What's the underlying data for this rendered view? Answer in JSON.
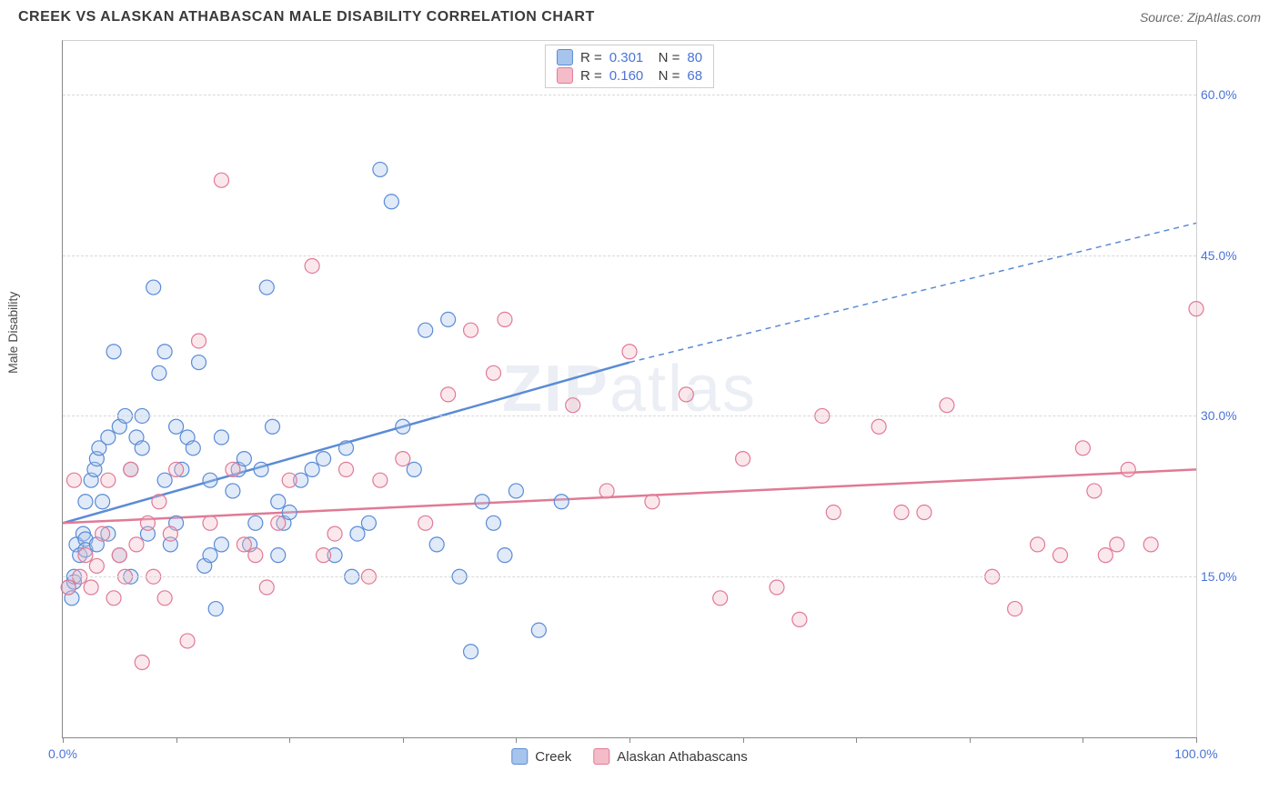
{
  "header": {
    "title": "CREEK VS ALASKAN ATHABASCAN MALE DISABILITY CORRELATION CHART",
    "source": "Source: ZipAtlas.com"
  },
  "chart": {
    "type": "scatter",
    "y_axis_label": "Male Disability",
    "watermark": "ZIPatlas",
    "xlim": [
      0,
      100
    ],
    "ylim": [
      0,
      65
    ],
    "y_gridlines": [
      15,
      30,
      45,
      60
    ],
    "y_tick_labels": [
      "15.0%",
      "30.0%",
      "45.0%",
      "60.0%"
    ],
    "x_ticks": [
      0,
      10,
      20,
      30,
      40,
      50,
      60,
      70,
      80,
      90,
      100
    ],
    "x_tick_labels": {
      "0": "0.0%",
      "100": "100.0%"
    },
    "background_color": "#ffffff",
    "grid_color": "#d8d8d8",
    "axis_color": "#888888",
    "marker_radius": 8,
    "marker_stroke_width": 1.2,
    "fill_opacity": 0.35,
    "series": [
      {
        "name": "Creek",
        "color_fill": "#a7c4ec",
        "color_stroke": "#5a8bd6",
        "r_value": "0.301",
        "n_value": "80",
        "trend": {
          "x1": 0,
          "y1": 20,
          "x2_solid": 50,
          "y2_solid": 35,
          "x2_dash": 100,
          "y2_dash": 48
        },
        "points": [
          [
            0.5,
            14
          ],
          [
            1,
            14.5
          ],
          [
            1.2,
            18
          ],
          [
            1.5,
            17
          ],
          [
            1.8,
            19
          ],
          [
            0.8,
            13
          ],
          [
            1,
            15
          ],
          [
            2,
            18.5
          ],
          [
            2,
            22
          ],
          [
            2,
            17.5
          ],
          [
            2.5,
            24
          ],
          [
            2.8,
            25
          ],
          [
            3,
            26
          ],
          [
            3,
            18
          ],
          [
            3.2,
            27
          ],
          [
            3.5,
            22
          ],
          [
            4,
            19
          ],
          [
            4,
            28
          ],
          [
            4.5,
            36
          ],
          [
            5,
            29
          ],
          [
            5,
            17
          ],
          [
            5.5,
            30
          ],
          [
            6,
            25
          ],
          [
            6,
            15
          ],
          [
            6.5,
            28
          ],
          [
            7,
            30
          ],
          [
            7,
            27
          ],
          [
            7.5,
            19
          ],
          [
            8,
            42
          ],
          [
            8.5,
            34
          ],
          [
            9,
            36
          ],
          [
            9,
            24
          ],
          [
            9.5,
            18
          ],
          [
            10,
            29
          ],
          [
            10,
            20
          ],
          [
            10.5,
            25
          ],
          [
            11,
            28
          ],
          [
            11.5,
            27
          ],
          [
            12,
            35
          ],
          [
            12.5,
            16
          ],
          [
            13,
            17
          ],
          [
            13,
            24
          ],
          [
            13.5,
            12
          ],
          [
            14,
            18
          ],
          [
            14,
            28
          ],
          [
            15,
            23
          ],
          [
            15.5,
            25
          ],
          [
            16,
            26
          ],
          [
            16.5,
            18
          ],
          [
            17,
            20
          ],
          [
            17.5,
            25
          ],
          [
            18,
            42
          ],
          [
            18.5,
            29
          ],
          [
            19,
            22
          ],
          [
            19,
            17
          ],
          [
            19.5,
            20
          ],
          [
            20,
            21
          ],
          [
            21,
            24
          ],
          [
            22,
            25
          ],
          [
            23,
            26
          ],
          [
            24,
            17
          ],
          [
            25,
            27
          ],
          [
            25.5,
            15
          ],
          [
            26,
            19
          ],
          [
            27,
            20
          ],
          [
            28,
            53
          ],
          [
            29,
            50
          ],
          [
            30,
            29
          ],
          [
            31,
            25
          ],
          [
            32,
            38
          ],
          [
            33,
            18
          ],
          [
            34,
            39
          ],
          [
            35,
            15
          ],
          [
            36,
            8
          ],
          [
            37,
            22
          ],
          [
            38,
            20
          ],
          [
            39,
            17
          ],
          [
            40,
            23
          ],
          [
            42,
            10
          ],
          [
            44,
            22
          ]
        ]
      },
      {
        "name": "Alaskan Athabascans",
        "color_fill": "#f4bcc8",
        "color_stroke": "#e07a96",
        "r_value": "0.160",
        "n_value": "68",
        "trend": {
          "x1": 0,
          "y1": 20,
          "x2_solid": 100,
          "y2_solid": 25
        },
        "points": [
          [
            0.5,
            14
          ],
          [
            1,
            24
          ],
          [
            1.5,
            15
          ],
          [
            2,
            17
          ],
          [
            2.5,
            14
          ],
          [
            3,
            16
          ],
          [
            3.5,
            19
          ],
          [
            4,
            24
          ],
          [
            4.5,
            13
          ],
          [
            5,
            17
          ],
          [
            5.5,
            15
          ],
          [
            6,
            25
          ],
          [
            6.5,
            18
          ],
          [
            7,
            7
          ],
          [
            7.5,
            20
          ],
          [
            8,
            15
          ],
          [
            8.5,
            22
          ],
          [
            9,
            13
          ],
          [
            9.5,
            19
          ],
          [
            10,
            25
          ],
          [
            11,
            9
          ],
          [
            12,
            37
          ],
          [
            13,
            20
          ],
          [
            14,
            52
          ],
          [
            15,
            25
          ],
          [
            16,
            18
          ],
          [
            17,
            17
          ],
          [
            18,
            14
          ],
          [
            19,
            20
          ],
          [
            20,
            24
          ],
          [
            22,
            44
          ],
          [
            23,
            17
          ],
          [
            24,
            19
          ],
          [
            25,
            25
          ],
          [
            27,
            15
          ],
          [
            28,
            24
          ],
          [
            30,
            26
          ],
          [
            32,
            20
          ],
          [
            34,
            32
          ],
          [
            36,
            38
          ],
          [
            38,
            34
          ],
          [
            39,
            39
          ],
          [
            45,
            31
          ],
          [
            48,
            23
          ],
          [
            50,
            36
          ],
          [
            52,
            22
          ],
          [
            55,
            32
          ],
          [
            58,
            13
          ],
          [
            60,
            26
          ],
          [
            63,
            14
          ],
          [
            65,
            11
          ],
          [
            67,
            30
          ],
          [
            68,
            21
          ],
          [
            72,
            29
          ],
          [
            74,
            21
          ],
          [
            76,
            21
          ],
          [
            78,
            31
          ],
          [
            82,
            15
          ],
          [
            84,
            12
          ],
          [
            86,
            18
          ],
          [
            88,
            17
          ],
          [
            90,
            27
          ],
          [
            91,
            23
          ],
          [
            92,
            17
          ],
          [
            93,
            18
          ],
          [
            94,
            25
          ],
          [
            96,
            18
          ],
          [
            100,
            40
          ]
        ]
      }
    ]
  },
  "legend_bottom": [
    {
      "swatch_fill": "#a7c4ec",
      "swatch_stroke": "#5a8bd6",
      "label": "Creek"
    },
    {
      "swatch_fill": "#f4bcc8",
      "swatch_stroke": "#e07a96",
      "label": "Alaskan Athabascans"
    }
  ]
}
